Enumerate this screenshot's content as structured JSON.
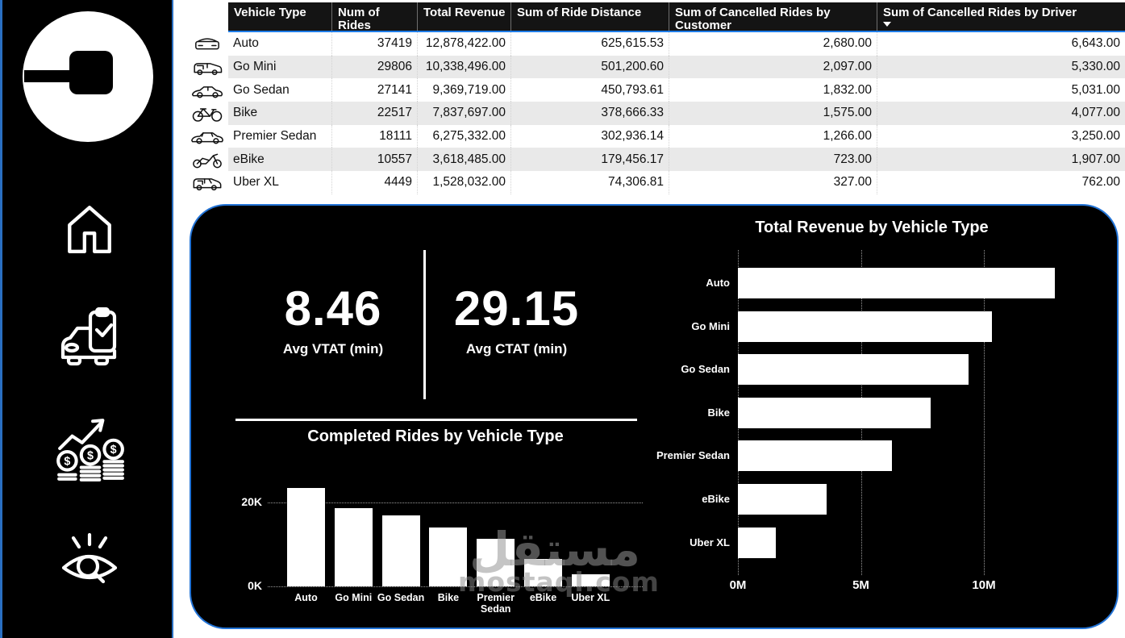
{
  "sidebar": {
    "logo": "uber-logo",
    "items": [
      {
        "icon": "home-icon"
      },
      {
        "icon": "ride-check-icon"
      },
      {
        "icon": "revenue-growth-icon"
      },
      {
        "icon": "insights-eye-icon"
      }
    ]
  },
  "table": {
    "columns": [
      "Vehicle Type",
      "Num of Rides",
      "Total Revenue",
      "Sum of Ride Distance",
      "Sum of Cancelled Rides by Customer",
      "Sum of Cancelled Rides by Driver"
    ],
    "sorted_column": "Sum of Cancelled Rides by Driver",
    "sort_direction": "descending",
    "rows": [
      {
        "icon": "auto-icon",
        "vehicle_type": "Auto",
        "num_of_rides": "37419",
        "total_revenue": "12,878,422.00",
        "ride_distance": "625,615.53",
        "cancelled_by_customer": "2,680.00",
        "cancelled_by_driver": "6,643.00"
      },
      {
        "icon": "go-mini-icon",
        "vehicle_type": "Go Mini",
        "num_of_rides": "29806",
        "total_revenue": "10,338,496.00",
        "ride_distance": "501,200.60",
        "cancelled_by_customer": "2,097.00",
        "cancelled_by_driver": "5,330.00"
      },
      {
        "icon": "go-sedan-icon",
        "vehicle_type": "Go Sedan",
        "num_of_rides": "27141",
        "total_revenue": "9,369,719.00",
        "ride_distance": "450,793.61",
        "cancelled_by_customer": "1,832.00",
        "cancelled_by_driver": "5,031.00"
      },
      {
        "icon": "bike-icon",
        "vehicle_type": "Bike",
        "num_of_rides": "22517",
        "total_revenue": "7,837,697.00",
        "ride_distance": "378,666.33",
        "cancelled_by_customer": "1,575.00",
        "cancelled_by_driver": "4,077.00"
      },
      {
        "icon": "premier-sedan-icon",
        "vehicle_type": "Premier Sedan",
        "num_of_rides": "18111",
        "total_revenue": "6,275,332.00",
        "ride_distance": "302,936.14",
        "cancelled_by_customer": "1,266.00",
        "cancelled_by_driver": "3,250.00"
      },
      {
        "icon": "ebike-icon",
        "vehicle_type": "eBike",
        "num_of_rides": "10557",
        "total_revenue": "3,618,485.00",
        "ride_distance": "179,456.17",
        "cancelled_by_customer": "723.00",
        "cancelled_by_driver": "1,907.00"
      },
      {
        "icon": "uber-xl-icon",
        "vehicle_type": "Uber XL",
        "num_of_rides": "4449",
        "total_revenue": "1,528,032.00",
        "ride_distance": "74,306.81",
        "cancelled_by_customer": "327.00",
        "cancelled_by_driver": "762.00"
      }
    ]
  },
  "kpis": [
    {
      "value": "8.46",
      "label": "Avg VTAT (min)"
    },
    {
      "value": "29.15",
      "label": "Avg CTAT (min)"
    }
  ],
  "chart_data": [
    {
      "type": "bar",
      "orientation": "vertical",
      "title": "Completed Rides by Vehicle Type",
      "categories": [
        "Auto",
        "Go Mini",
        "Go Sedan",
        "Bike",
        "Premier Sedan",
        "eBike",
        "Uber XL"
      ],
      "values": [
        23400,
        18600,
        17000,
        14100,
        11300,
        6600,
        2800
      ],
      "xlabel": "",
      "ylabel": "",
      "ylim": [
        0,
        26000
      ],
      "yticks": [
        {
          "label": "20K",
          "value": 20000
        },
        {
          "label": "0K",
          "value": 0
        }
      ],
      "grid": "dotted horizontal",
      "bar_color": "#ffffff",
      "background": "#000000"
    },
    {
      "type": "bar",
      "orientation": "horizontal",
      "title": "Total Revenue by Vehicle Type",
      "categories": [
        "Auto",
        "Go Mini",
        "Go Sedan",
        "Bike",
        "Premier Sedan",
        "eBike",
        "Uber XL"
      ],
      "values": [
        12878422,
        10338496,
        9369719,
        7837697,
        6275332,
        3618485,
        1528032
      ],
      "xlabel": "",
      "ylabel": "",
      "xlim": [
        0,
        15500000
      ],
      "xticks": [
        {
          "label": "0M",
          "value": 0
        },
        {
          "label": "5M",
          "value": 5000000
        },
        {
          "label": "10M",
          "value": 10000000
        }
      ],
      "grid": "dotted vertical",
      "bar_color": "#ffffff",
      "background": "#000000"
    }
  ],
  "watermark": {
    "arabic": "مستقل",
    "latin": "mostaql.com"
  },
  "colors": {
    "accent_blue": "#2273d6",
    "header_underline_blue": "#1e7ce8",
    "panel_bg": "#000000",
    "sidebar_bg": "#000000",
    "row_stripe": "#e9e9e9",
    "bar_fill": "#ffffff",
    "text_dark": "#111111",
    "text_light": "#ffffff"
  }
}
